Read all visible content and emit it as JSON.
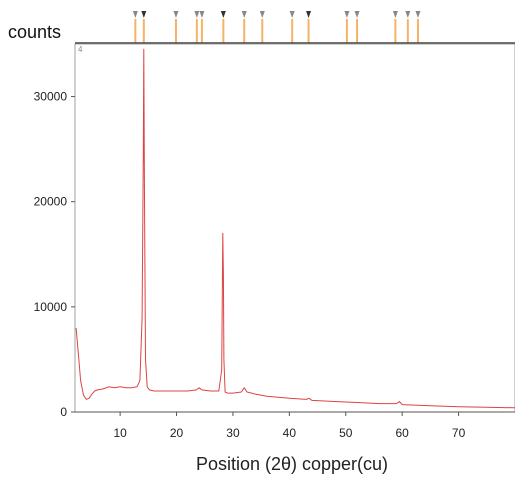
{
  "chart_data": {
    "type": "line",
    "title": "",
    "xlabel": "Position (2θ) copper(cu)",
    "ylabel": "counts",
    "xlim": [
      2,
      80
    ],
    "ylim": [
      0,
      35000
    ],
    "xticks": [
      10,
      20,
      30,
      40,
      50,
      60,
      70
    ],
    "yticks": [
      0,
      10000,
      20000,
      30000
    ],
    "grid": false,
    "legend": "none",
    "colors": {
      "line": "#dd4444",
      "reference_marker": "#f4b366",
      "axis": "#555555"
    },
    "series": [
      {
        "x": [
          2.2,
          2.6,
          3.0,
          3.5,
          4.0,
          4.5,
          5.0,
          5.5,
          6.0,
          7.0,
          8.0,
          9.0,
          10.0,
          11.0,
          12.0,
          13.0,
          13.5,
          13.9,
          14.1,
          14.2,
          14.3,
          14.5,
          14.8,
          15.2,
          16.0,
          18.0,
          20.0,
          22.0,
          23.5,
          24.0,
          24.5,
          26.0,
          27.5,
          28.0,
          28.2,
          28.3,
          28.4,
          28.6,
          29.0,
          30.0,
          31.5,
          32.0,
          32.5,
          34.0,
          36.0,
          40.0,
          43.0,
          43.5,
          44.0,
          48.0,
          52.0,
          56.0,
          59.0,
          59.5,
          60.0,
          65.0,
          70.0,
          75.0,
          80.0
        ],
        "y": [
          8000,
          5500,
          3000,
          1600,
          1200,
          1300,
          1700,
          2000,
          2100,
          2200,
          2400,
          2300,
          2400,
          2300,
          2300,
          2400,
          3000,
          9000,
          24500,
          34500,
          22000,
          5000,
          2400,
          2100,
          2000,
          2000,
          2000,
          2000,
          2100,
          2300,
          2100,
          2000,
          2000,
          4000,
          17000,
          13000,
          5000,
          1900,
          1800,
          1800,
          1900,
          2300,
          1900,
          1700,
          1500,
          1300,
          1200,
          1300,
          1100,
          1000,
          900,
          800,
          800,
          1000,
          700,
          600,
          500,
          450,
          400
        ]
      }
    ],
    "reference_peaks": [
      {
        "x": 12.7,
        "style": "light"
      },
      {
        "x": 14.2,
        "style": "dark"
      },
      {
        "x": 19.9,
        "style": "light"
      },
      {
        "x": 23.6,
        "style": "light"
      },
      {
        "x": 24.5,
        "style": "light"
      },
      {
        "x": 28.3,
        "style": "dark"
      },
      {
        "x": 32.0,
        "style": "light"
      },
      {
        "x": 35.2,
        "style": "light"
      },
      {
        "x": 40.5,
        "style": "light"
      },
      {
        "x": 43.4,
        "style": "dark"
      },
      {
        "x": 50.2,
        "style": "light"
      },
      {
        "x": 52.0,
        "style": "light"
      },
      {
        "x": 58.8,
        "style": "light"
      },
      {
        "x": 61.0,
        "style": "light"
      },
      {
        "x": 62.8,
        "style": "light"
      }
    ]
  }
}
